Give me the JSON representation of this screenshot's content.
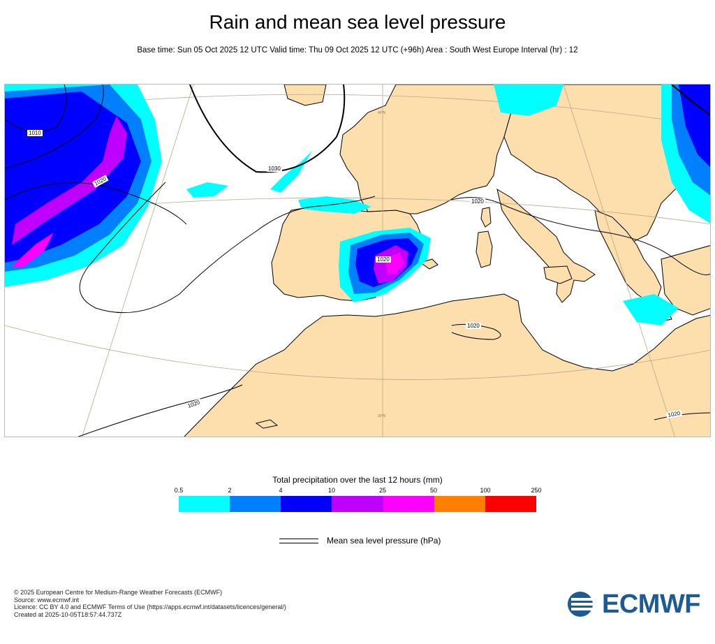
{
  "header": {
    "title": "Rain and mean sea level pressure",
    "subtitle": "Base time: Sun 05 Oct 2025 12 UTC Valid time: Thu 09 Oct 2025 12 UTC (+96h) Area : South West Europe Interval (hr) : 12"
  },
  "map": {
    "region": "South West Europe",
    "isobar_labels": [
      "1010",
      "1030",
      "1020",
      "1020",
      "1020",
      "1020",
      "1020",
      "1020"
    ],
    "grid_labels": [
      "40°N",
      "30°N"
    ],
    "colors": {
      "land": "#fddfad",
      "sea": "#ffffff",
      "coastline": "#000000",
      "graticule": "#b8a88c",
      "isobar": "#000000"
    }
  },
  "legend": {
    "title": "Total precipitation over the last 12 hours (mm)",
    "ticks": [
      "0.5",
      "2",
      "4",
      "10",
      "25",
      "50",
      "100",
      "250"
    ],
    "colors": [
      "#00ffff",
      "#0080ff",
      "#0000ff",
      "#c000ff",
      "#ff00ff",
      "#ff8000",
      "#ff0000"
    ],
    "mslp_label": "Mean sea level pressure (hPa)"
  },
  "footer": {
    "lines": [
      "© 2025 European Centre for Medium-Range Weather Forecasts (ECMWF)",
      "Source: www.ecmwf.int",
      "Licence: CC BY 4.0 and ECMWF Terms of Use (https://apps.ecmwf.int/datasets/licences/general/)",
      "Created at 2025-10-05T18:57:44.737Z"
    ],
    "logo_text": "ECMWF",
    "logo_color": "#1f5b93"
  }
}
